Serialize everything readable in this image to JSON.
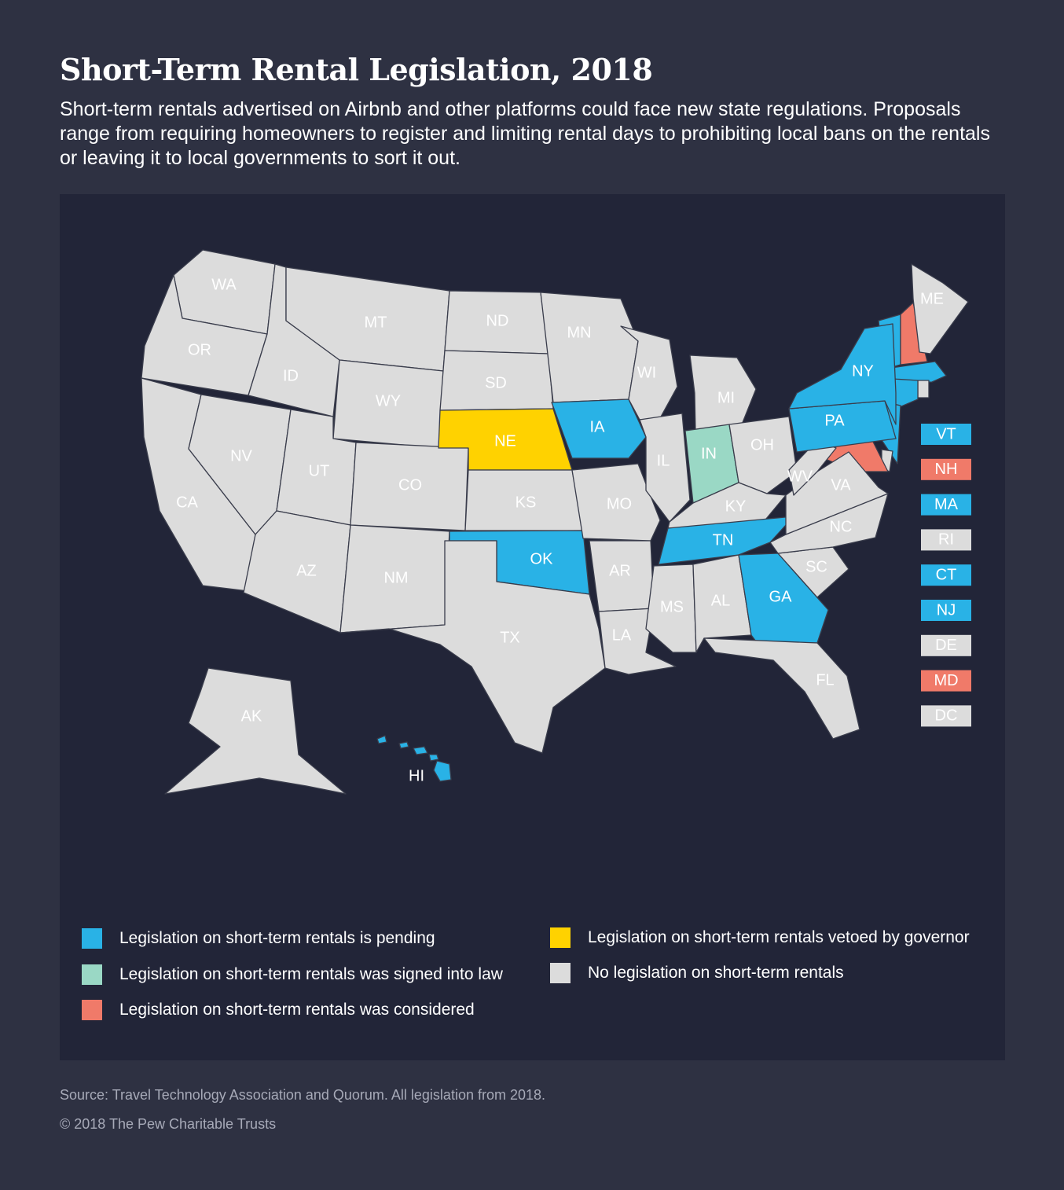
{
  "header": {
    "title": "Short-Term Rental Legislation, 2018",
    "subtitle": "Short-term rentals advertised on Airbnb and other platforms could face new state regulations. Proposals range from requiring homeowners to register and limiting rental days to prohibiting local bans on the rentals or leaving it to local governments to sort it out."
  },
  "colors": {
    "pending": "#29b2e6",
    "signed": "#9ad8c5",
    "considered": "#f07a69",
    "vetoed": "#ffd200",
    "none": "#dcdcdc",
    "background": "#2e3142",
    "panel": "#222538"
  },
  "legend": [
    {
      "status": "pending",
      "label": "Legislation on short-term rentals is pending"
    },
    {
      "status": "signed",
      "label": "Legislation on short-term rentals was signed into law"
    },
    {
      "status": "considered",
      "label": "Legislation on short-term rentals was considered"
    },
    {
      "status": "vetoed",
      "label": "Legislation on short-term rentals vetoed by governor"
    },
    {
      "status": "none",
      "label": "No legislation on short-term rentals"
    }
  ],
  "states": [
    {
      "abbr": "WA",
      "status": "none"
    },
    {
      "abbr": "OR",
      "status": "none"
    },
    {
      "abbr": "CA",
      "status": "none"
    },
    {
      "abbr": "ID",
      "status": "none"
    },
    {
      "abbr": "NV",
      "status": "none"
    },
    {
      "abbr": "MT",
      "status": "none"
    },
    {
      "abbr": "WY",
      "status": "none"
    },
    {
      "abbr": "UT",
      "status": "none"
    },
    {
      "abbr": "AZ",
      "status": "none"
    },
    {
      "abbr": "CO",
      "status": "none"
    },
    {
      "abbr": "NM",
      "status": "none"
    },
    {
      "abbr": "ND",
      "status": "none"
    },
    {
      "abbr": "SD",
      "status": "none"
    },
    {
      "abbr": "NE",
      "status": "vetoed"
    },
    {
      "abbr": "KS",
      "status": "none"
    },
    {
      "abbr": "OK",
      "status": "pending"
    },
    {
      "abbr": "TX",
      "status": "none"
    },
    {
      "abbr": "MN",
      "status": "none"
    },
    {
      "abbr": "IA",
      "status": "pending"
    },
    {
      "abbr": "MO",
      "status": "none"
    },
    {
      "abbr": "AR",
      "status": "none"
    },
    {
      "abbr": "LA",
      "status": "none"
    },
    {
      "abbr": "WI",
      "status": "none"
    },
    {
      "abbr": "IL",
      "status": "none"
    },
    {
      "abbr": "MI",
      "status": "none"
    },
    {
      "abbr": "IN",
      "status": "signed"
    },
    {
      "abbr": "OH",
      "status": "none"
    },
    {
      "abbr": "KY",
      "status": "none"
    },
    {
      "abbr": "TN",
      "status": "pending"
    },
    {
      "abbr": "MS",
      "status": "none"
    },
    {
      "abbr": "AL",
      "status": "none"
    },
    {
      "abbr": "GA",
      "status": "pending"
    },
    {
      "abbr": "FL",
      "status": "none"
    },
    {
      "abbr": "SC",
      "status": "none"
    },
    {
      "abbr": "NC",
      "status": "none"
    },
    {
      "abbr": "VA",
      "status": "none"
    },
    {
      "abbr": "WV",
      "status": "none"
    },
    {
      "abbr": "PA",
      "status": "pending"
    },
    {
      "abbr": "NY",
      "status": "pending"
    },
    {
      "abbr": "ME",
      "status": "none"
    },
    {
      "abbr": "AK",
      "status": "none"
    },
    {
      "abbr": "HI",
      "status": "pending"
    }
  ],
  "small_states": [
    {
      "abbr": "VT",
      "status": "pending"
    },
    {
      "abbr": "NH",
      "status": "considered"
    },
    {
      "abbr": "MA",
      "status": "pending"
    },
    {
      "abbr": "RI",
      "status": "none"
    },
    {
      "abbr": "CT",
      "status": "pending"
    },
    {
      "abbr": "NJ",
      "status": "pending"
    },
    {
      "abbr": "DE",
      "status": "none"
    },
    {
      "abbr": "MD",
      "status": "considered"
    },
    {
      "abbr": "DC",
      "status": "none"
    }
  ],
  "footer": {
    "source": "Source: Travel Technology Association and Quorum. All legislation from 2018.",
    "copyright": "© 2018 The Pew Charitable Trusts"
  }
}
